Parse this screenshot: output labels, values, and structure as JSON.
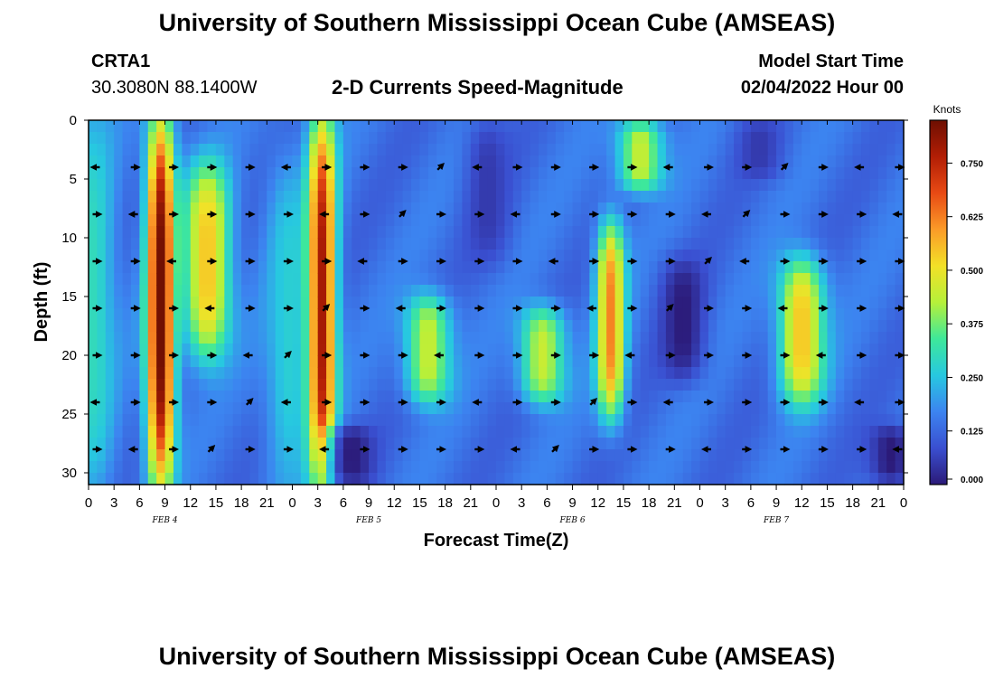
{
  "header": {
    "title": "University of Southern Mississippi Ocean Cube (AMSEAS)",
    "station_id": "CRTA1",
    "station_coords": "30.3080N  88.1400W",
    "plot_subtitle": "2-D Currents Speed-Magnitude",
    "model_start_label": "Model Start Time",
    "model_start_value": "02/04/2022 Hour 00"
  },
  "footer": {
    "title": "University of Southern Mississippi Ocean Cube (AMSEAS)"
  },
  "chart_data": {
    "type": "heatmap",
    "title": "2-D Currents Speed-Magnitude",
    "xlabel": "Forecast Time(Z)",
    "ylabel": "Depth (ft)",
    "xlim": [
      0,
      96
    ],
    "ylim": [
      31,
      0
    ],
    "x_tick_values": [
      0,
      3,
      6,
      9,
      12,
      15,
      18,
      21,
      24,
      27,
      30,
      33,
      36,
      39,
      42,
      45,
      48,
      51,
      54,
      57,
      60,
      63,
      66,
      69,
      72,
      75,
      78,
      81,
      84,
      87,
      90,
      93,
      96
    ],
    "x_tick_labels": [
      "0",
      "3",
      "6",
      "9",
      "12",
      "15",
      "18",
      "21",
      "0",
      "3",
      "6",
      "9",
      "12",
      "15",
      "18",
      "21",
      "0",
      "3",
      "6",
      "9",
      "12",
      "15",
      "18",
      "21",
      "0",
      "3",
      "6",
      "9",
      "12",
      "15",
      "18",
      "21",
      "0"
    ],
    "y_tick_values": [
      0,
      5,
      10,
      15,
      20,
      25,
      30
    ],
    "y_tick_labels": [
      "0",
      "5",
      "10",
      "15",
      "20",
      "25",
      "30"
    ],
    "day_labels": [
      {
        "hour": 9,
        "label": "FEB 4"
      },
      {
        "hour": 33,
        "label": "FEB 5"
      },
      {
        "hour": 57,
        "label": "FEB 6"
      },
      {
        "hour": 81,
        "label": "FEB 7"
      }
    ],
    "colorbar": {
      "label": "Knots",
      "min": 0,
      "max": 0.85,
      "tick_values": [
        0.0,
        0.125,
        0.25,
        0.375,
        0.5,
        0.625,
        0.75
      ],
      "tick_labels": [
        "0.000",
        "0.125",
        "0.250",
        "0.375",
        "0.500",
        "0.625",
        "0.750"
      ],
      "colormap": [
        "#2b1a78",
        "#3a4fd0",
        "#3c84f0",
        "#27c8e0",
        "#3ee89a",
        "#b6f03a",
        "#f2e127",
        "#fb9b28",
        "#e84a14",
        "#b21e05",
        "#6e0f02"
      ]
    },
    "speed_features_knots": [
      {
        "hour": 0.5,
        "depth_range": [
          0,
          31
        ],
        "peak": 0.3
      },
      {
        "hour": 8.5,
        "depth_range": [
          0,
          31
        ],
        "peak": 0.85
      },
      {
        "hour": 14,
        "depth_range": [
          4,
          20
        ],
        "peak": 0.55
      },
      {
        "hour": 23.5,
        "depth_range": [
          4,
          31
        ],
        "peak": 0.27
      },
      {
        "hour": 27.5,
        "depth_range": [
          0,
          31
        ],
        "peak": 0.78
      },
      {
        "hour": 31,
        "depth_range": [
          26,
          31
        ],
        "peak": 0.0
      },
      {
        "hour": 40,
        "depth_range": [
          15,
          24
        ],
        "peak": 0.45
      },
      {
        "hour": 47,
        "depth_range": [
          0,
          12
        ],
        "peak": 0.05
      },
      {
        "hour": 53.5,
        "depth_range": [
          16,
          24
        ],
        "peak": 0.45
      },
      {
        "hour": 61.5,
        "depth_range": [
          9,
          25
        ],
        "peak": 0.62
      },
      {
        "hour": 65,
        "depth_range": [
          0,
          6
        ],
        "peak": 0.45
      },
      {
        "hour": 70,
        "depth_range": [
          12,
          22
        ],
        "peak": 0.0
      },
      {
        "hour": 79,
        "depth_range": [
          0,
          5
        ],
        "peak": 0.05
      },
      {
        "hour": 84,
        "depth_range": [
          12,
          24
        ],
        "peak": 0.55
      },
      {
        "hour": 94.5,
        "depth_range": [
          26,
          31
        ],
        "peak": 0.0
      }
    ],
    "vector_depths_ft": [
      4,
      8,
      12,
      16,
      20,
      24,
      28
    ],
    "vector_times_hours": [
      0.9,
      5.4,
      9.9,
      14.4,
      18.9,
      23.4,
      27.9,
      32.4,
      36.9,
      41.4,
      45.9,
      50.4,
      54.9,
      59.4,
      63.9,
      68.4,
      72.9,
      77.4,
      81.9,
      86.4,
      90.9,
      95.4
    ]
  }
}
